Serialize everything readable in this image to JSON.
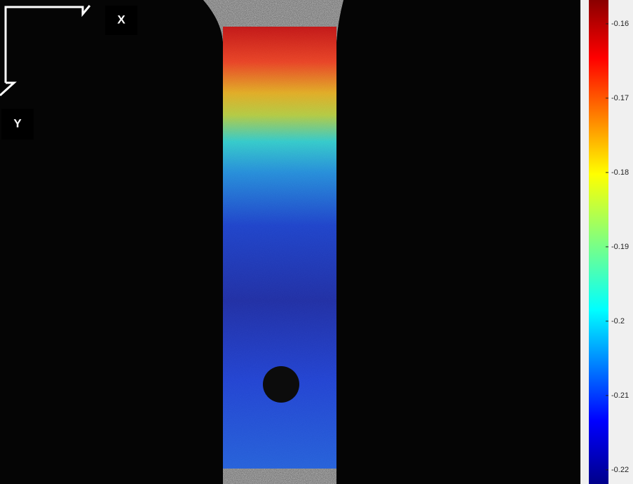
{
  "axis_labels": {
    "x": "X",
    "y": "Y"
  },
  "colorbar": {
    "lim": [
      -0.2219,
      -0.1568
    ],
    "ticks": [
      -0.16,
      -0.17,
      -0.18,
      -0.19,
      -0.2,
      -0.21,
      -0.22
    ]
  }
}
